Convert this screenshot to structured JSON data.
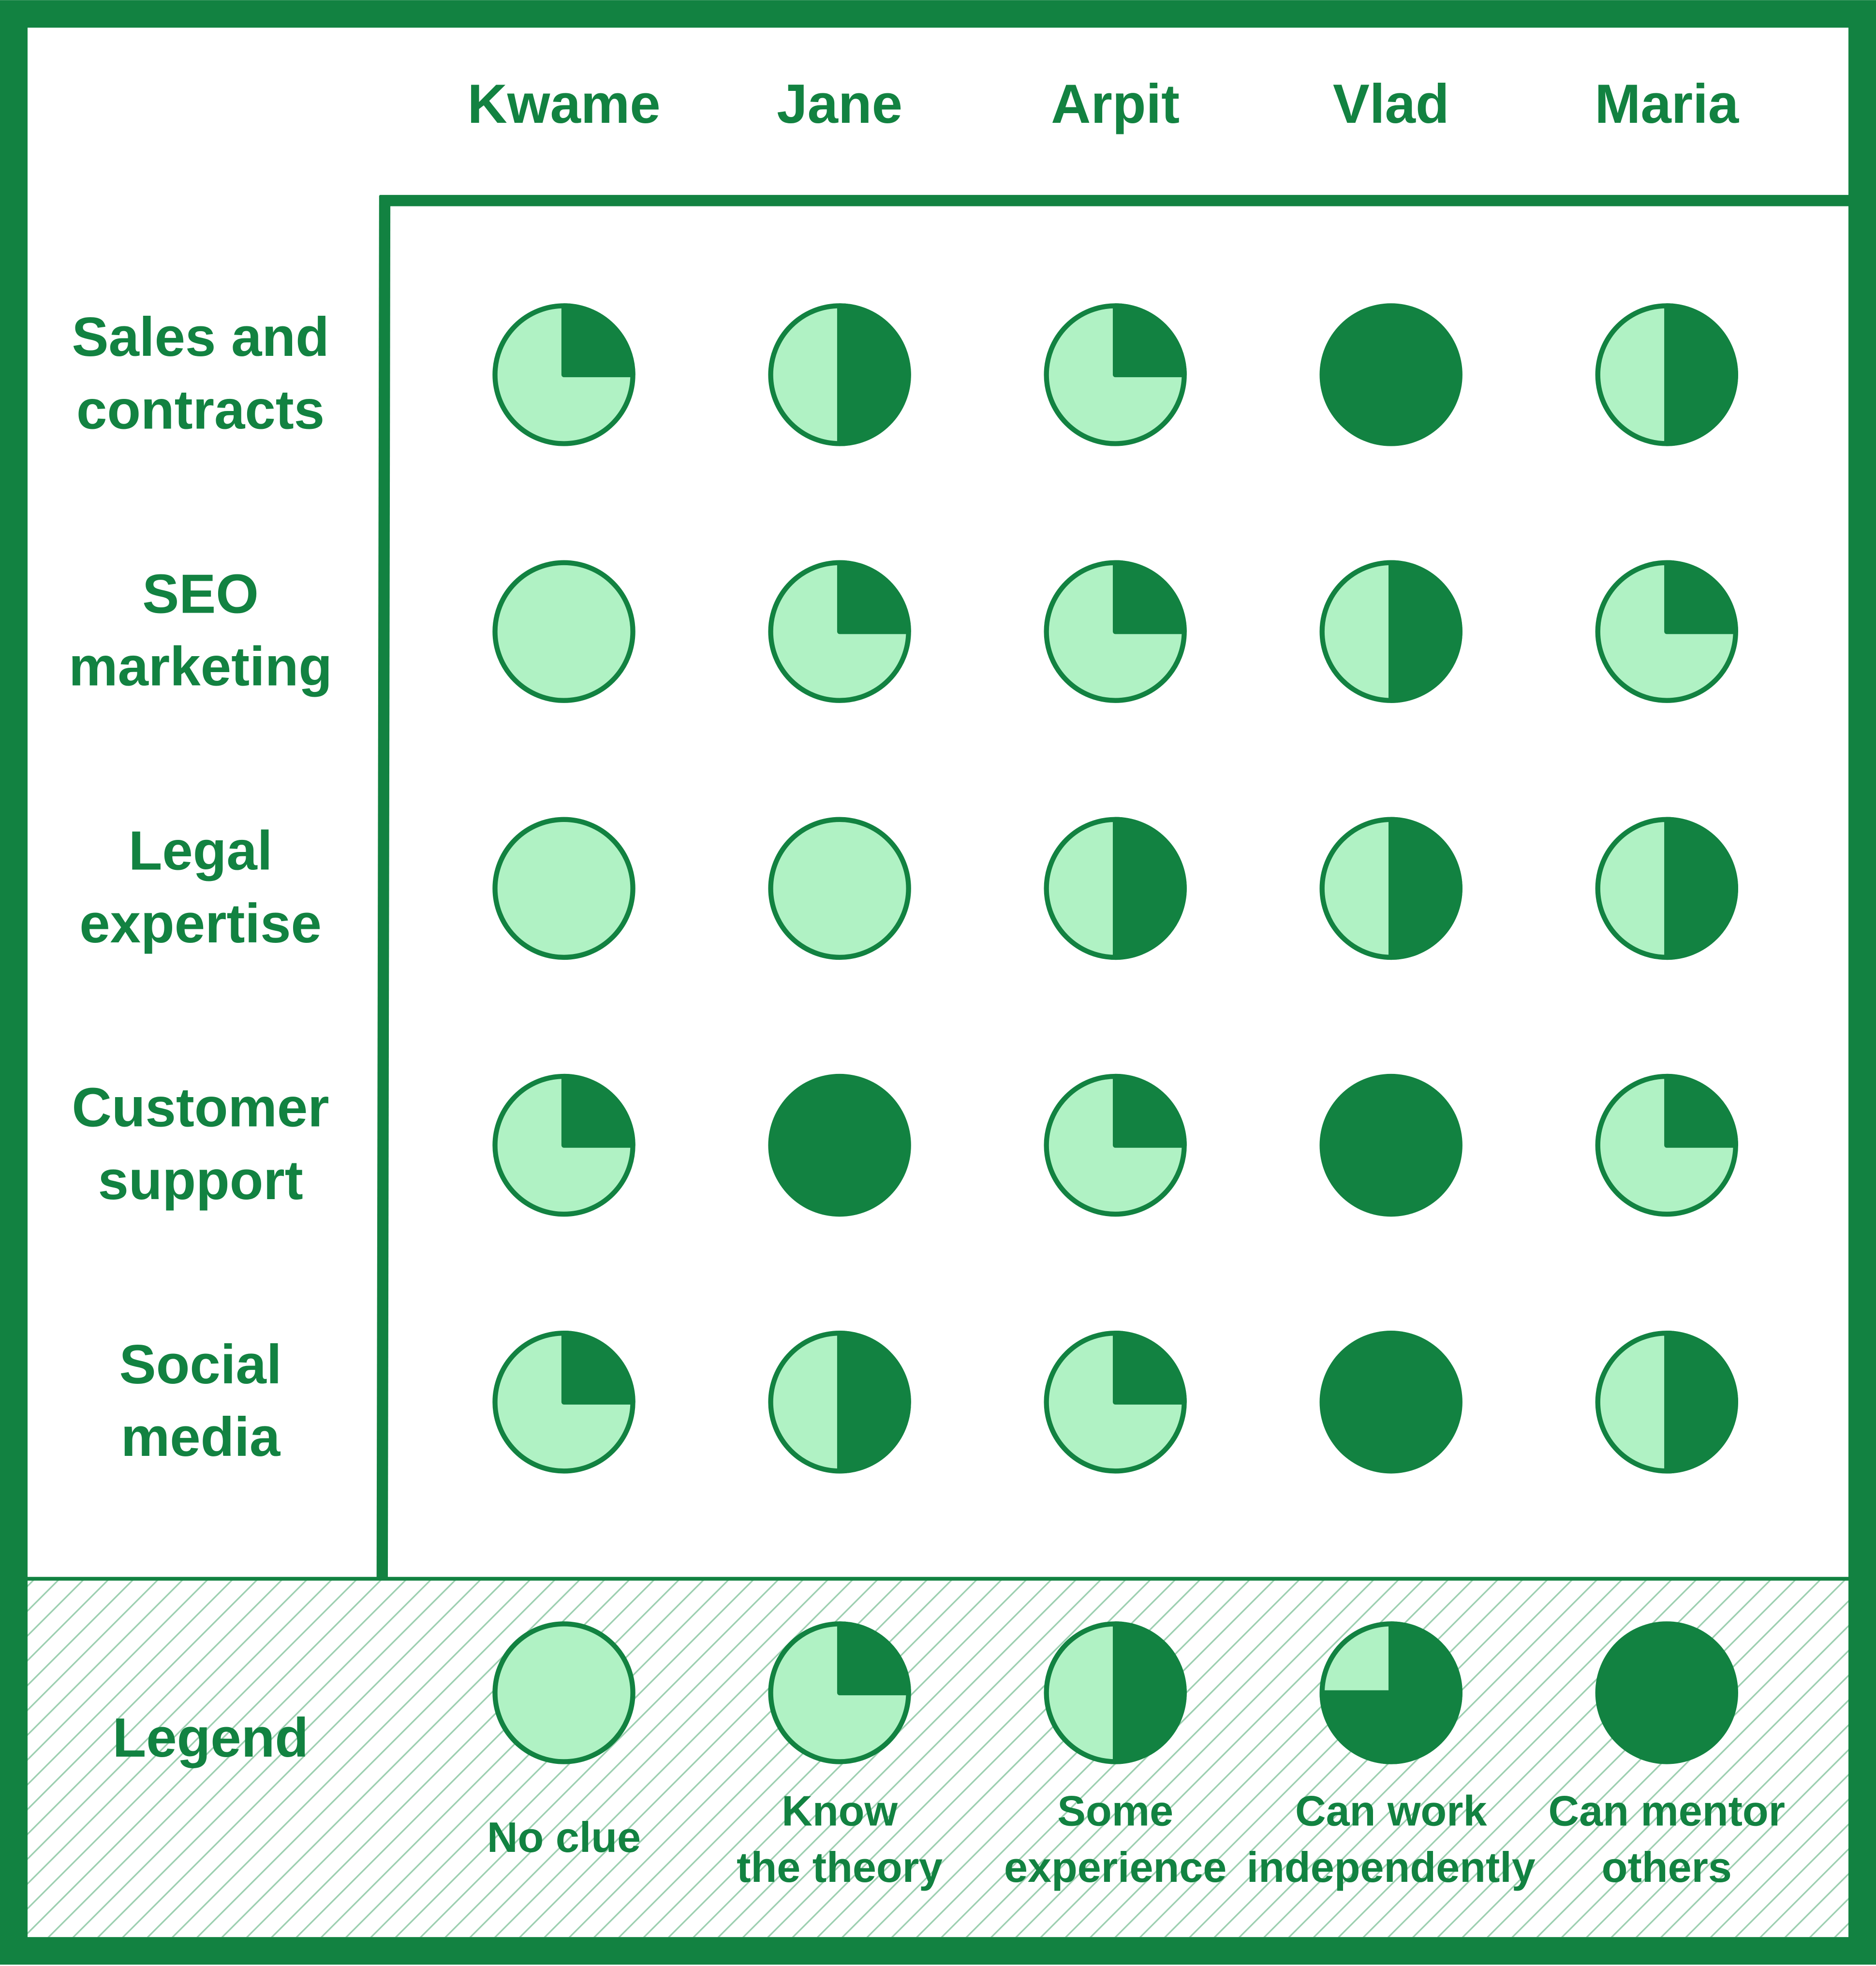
{
  "colors": {
    "dark": "#128241",
    "light": "#b0f2c4",
    "background": "#ffffff"
  },
  "chart_data": {
    "type": "table",
    "columns": [
      "Kwame",
      "Jane",
      "Arpit",
      "Vlad",
      "Maria"
    ],
    "rows": [
      {
        "label": [
          "Sales and",
          "contracts"
        ],
        "levels": [
          1,
          2,
          1,
          4,
          2
        ]
      },
      {
        "label": [
          "SEO",
          "marketing"
        ],
        "levels": [
          0,
          1,
          1,
          2,
          1
        ]
      },
      {
        "label": [
          "Legal",
          "expertise"
        ],
        "levels": [
          0,
          0,
          2,
          2,
          2
        ]
      },
      {
        "label": [
          "Customer",
          "support"
        ],
        "levels": [
          1,
          4,
          1,
          4,
          1
        ]
      },
      {
        "label": [
          "Social",
          "media"
        ],
        "levels": [
          1,
          2,
          1,
          4,
          2
        ]
      }
    ],
    "level_scale": "filled quarters of a circle, 0-4",
    "legend": {
      "title": "Legend",
      "items": [
        {
          "level": 0,
          "label": [
            "No clue"
          ]
        },
        {
          "level": 1,
          "label": [
            "Know",
            "the theory"
          ]
        },
        {
          "level": 2,
          "label": [
            "Some",
            "experience"
          ]
        },
        {
          "level": 3,
          "label": [
            "Can work",
            "independently"
          ]
        },
        {
          "level": 4,
          "label": [
            "Can mentor",
            "others"
          ]
        }
      ],
      "placement": "bottom"
    }
  }
}
